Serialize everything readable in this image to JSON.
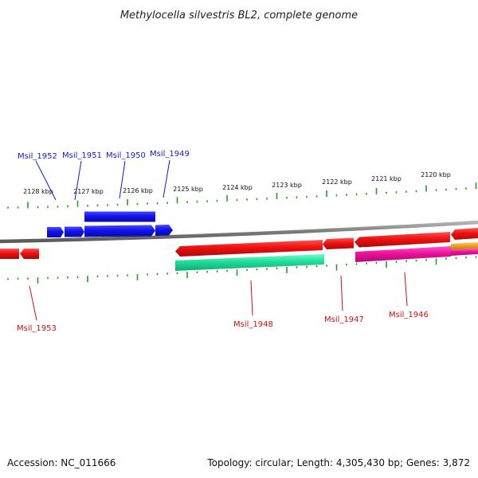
{
  "title": "Methylocella silvestris BL2, complete genome",
  "footer": {
    "accession": "Accession: NC_011666",
    "summary": "Topology: circular; Length: 4,305,430 bp; Genes: 3,872"
  },
  "colors": {
    "backbone": "#8a8a8a",
    "tick": "#2a9a2a",
    "forward_label": "#1a1acc",
    "reverse_label": "#cc1111",
    "blue_gene": "#1111ee",
    "red_gene": "#ee1111",
    "green_gene": "#22dd99",
    "magenta_gene": "#ee1199",
    "orange_gene": "#ee9922"
  },
  "kbp_labels": [
    "2128 kbp",
    "2127 kbp",
    "2126 kbp",
    "2125 kbp",
    "2124 kbp",
    "2123 kbp",
    "2122 kbp",
    "2121 kbp",
    "2120 kbp"
  ],
  "forward_genes": [
    {
      "label": "Msil_1952"
    },
    {
      "label": "Msil_1951"
    },
    {
      "label": "Msil_1950"
    },
    {
      "label": "Msil_1949"
    }
  ],
  "reverse_genes": [
    {
      "label": "Msil_1953"
    },
    {
      "label": "Msil_1948"
    },
    {
      "label": "Msil_1947"
    },
    {
      "label": "Msil_1946"
    }
  ]
}
